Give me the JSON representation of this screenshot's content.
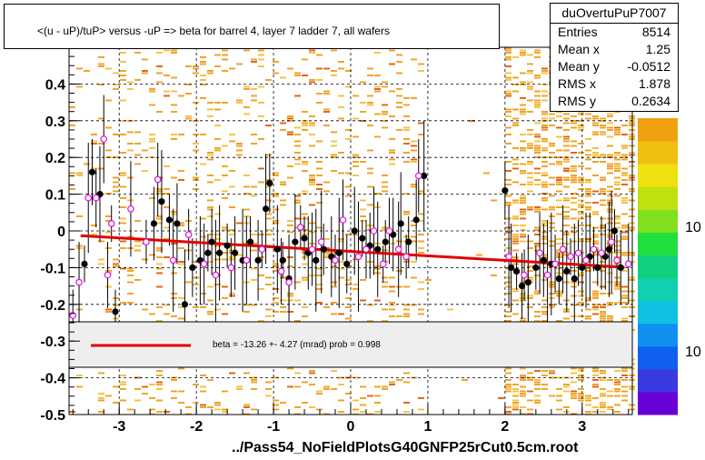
{
  "title": "<(u - uP)/tuP> versus  -uP => beta for barrel 4, layer 7 ladder 7, all wafers",
  "stats": {
    "name": "duOvertuPuP7007",
    "rows": [
      {
        "label": "Entries",
        "value": "8514"
      },
      {
        "label": "Mean x",
        "value": "1.25"
      },
      {
        "label": "Mean y",
        "value": "-0.0512"
      },
      {
        "label": "RMS x",
        "value": "1.878"
      },
      {
        "label": "RMS y",
        "value": "0.2634"
      }
    ]
  },
  "x_title": "../Pass54_NoFieldPlotsG40GNFP25rCut0.5cm.root",
  "legend": {
    "text": "beta =  -13.26 +-  4.27 (mrad) prob = 0.998",
    "line_color": "#e00000"
  },
  "colors": {
    "profile_black": "#000000",
    "profile_magenta": "#e010e0",
    "fit_line": "#e00000",
    "hist_orange": "#f0a020"
  },
  "chart_data": {
    "type": "scatter",
    "title": "<(u - uP)/tuP> versus  -uP => beta for barrel 4, layer 7 ladder 7, all wafers",
    "xlabel": "../Pass54_NoFieldPlotsG40GNFP25rCut0.5cm.root",
    "ylabel": "",
    "xlim": [
      -3.65,
      3.65
    ],
    "ylim": [
      -0.5,
      0.5
    ],
    "x_ticks": [
      -3,
      -2,
      -1,
      0,
      1,
      2,
      3
    ],
    "y_ticks": [
      -0.5,
      -0.4,
      -0.3,
      -0.2,
      -0.1,
      0,
      0.1,
      0.2,
      0.3,
      0.4
    ],
    "y_tick_labels": [
      "-0.5",
      "-0.4",
      "-0.3",
      "-0.2",
      "-0.1",
      "0",
      "0.1",
      "0.2",
      "0.3",
      "0.4"
    ],
    "grid": true,
    "colorbar_labels": [
      "10",
      "10"
    ],
    "fit_line": {
      "x": [
        -3.5,
        3.55
      ],
      "y": [
        -0.013,
        -0.099
      ]
    },
    "series": [
      {
        "marker": "filled-circle",
        "points": [
          [
            -3.45,
            -0.09
          ],
          [
            -3.35,
            0.16
          ],
          [
            -3.25,
            0.1
          ],
          [
            -3.05,
            -0.22
          ],
          [
            -2.55,
            0.02
          ],
          [
            -2.45,
            0.08
          ],
          [
            -2.35,
            0.03
          ],
          [
            -2.25,
            0.02
          ],
          [
            -2.15,
            -0.2
          ],
          [
            -2.05,
            -0.1
          ],
          [
            -1.95,
            -0.08
          ],
          [
            -1.85,
            -0.06
          ],
          [
            -1.8,
            -0.03
          ],
          [
            -1.7,
            -0.06
          ],
          [
            -1.6,
            -0.04
          ],
          [
            -1.5,
            -0.06
          ],
          [
            -1.4,
            -0.08
          ],
          [
            -1.3,
            -0.03
          ],
          [
            -1.2,
            -0.08
          ],
          [
            -1.1,
            0.06
          ],
          [
            -1.05,
            0.13
          ],
          [
            -0.95,
            -0.05
          ],
          [
            -0.88,
            -0.08
          ],
          [
            -0.8,
            -0.13
          ],
          [
            -0.72,
            -0.03
          ],
          [
            -0.6,
            -0.02
          ],
          [
            -0.55,
            -0.06
          ],
          [
            -0.45,
            -0.08
          ],
          [
            -0.35,
            -0.05
          ],
          [
            -0.25,
            -0.07
          ],
          [
            -0.15,
            -0.06
          ],
          [
            -0.05,
            -0.09
          ],
          [
            0.05,
            0.0
          ],
          [
            0.15,
            -0.02
          ],
          [
            0.25,
            -0.04
          ],
          [
            0.35,
            -0.05
          ],
          [
            0.45,
            -0.03
          ],
          [
            0.55,
            -0.01
          ],
          [
            0.65,
            0.02
          ],
          [
            0.75,
            -0.03
          ],
          [
            0.85,
            0.03
          ],
          [
            0.95,
            0.15
          ],
          [
            2.0,
            0.11
          ],
          [
            2.08,
            -0.1
          ],
          [
            2.15,
            -0.11
          ],
          [
            2.22,
            -0.15
          ],
          [
            2.3,
            -0.14
          ],
          [
            2.4,
            -0.1
          ],
          [
            2.5,
            -0.08
          ],
          [
            2.6,
            -0.09
          ],
          [
            2.7,
            -0.13
          ],
          [
            2.8,
            -0.11
          ],
          [
            2.9,
            -0.13
          ],
          [
            3.0,
            -0.1
          ],
          [
            3.1,
            -0.07
          ],
          [
            3.2,
            -0.1
          ],
          [
            3.3,
            -0.07
          ],
          [
            3.35,
            -0.05
          ],
          [
            3.42,
            0.0
          ],
          [
            3.5,
            -0.1
          ]
        ]
      },
      {
        "marker": "open-circle",
        "points": [
          [
            -3.6,
            -0.23
          ],
          [
            -3.52,
            -0.14
          ],
          [
            -3.4,
            0.09
          ],
          [
            -3.3,
            0.09
          ],
          [
            -3.2,
            0.25
          ],
          [
            -3.1,
            0.02
          ],
          [
            -3.15,
            -0.12
          ],
          [
            -2.85,
            0.06
          ],
          [
            -2.65,
            -0.03
          ],
          [
            -2.5,
            0.14
          ],
          [
            -2.3,
            -0.08
          ],
          [
            -2.1,
            -0.01
          ],
          [
            -1.9,
            -0.09
          ],
          [
            -1.75,
            -0.12
          ],
          [
            -1.55,
            -0.1
          ],
          [
            -1.35,
            -0.08
          ],
          [
            -1.15,
            -0.05
          ],
          [
            -0.9,
            -0.11
          ],
          [
            -0.8,
            -0.14
          ],
          [
            -0.65,
            0.01
          ],
          [
            -0.5,
            -0.05
          ],
          [
            -0.38,
            -0.03
          ],
          [
            -0.2,
            -0.08
          ],
          [
            -0.1,
            0.03
          ],
          [
            0.1,
            -0.07
          ],
          [
            0.2,
            -0.05
          ],
          [
            0.3,
            0.0
          ],
          [
            0.42,
            -0.09
          ],
          [
            0.5,
            0.0
          ],
          [
            0.62,
            -0.05
          ],
          [
            0.72,
            -0.07
          ],
          [
            0.88,
            0.15
          ],
          [
            2.05,
            -0.07
          ],
          [
            2.25,
            -0.12
          ],
          [
            2.45,
            -0.06
          ],
          [
            2.55,
            -0.12
          ],
          [
            2.65,
            -0.09
          ],
          [
            2.75,
            -0.05
          ],
          [
            2.85,
            -0.07
          ],
          [
            2.95,
            -0.06
          ],
          [
            3.05,
            -0.08
          ],
          [
            3.15,
            -0.05
          ],
          [
            3.25,
            -0.06
          ],
          [
            3.38,
            -0.03
          ],
          [
            3.45,
            -0.08
          ],
          [
            3.6,
            -0.09
          ]
        ]
      }
    ]
  }
}
